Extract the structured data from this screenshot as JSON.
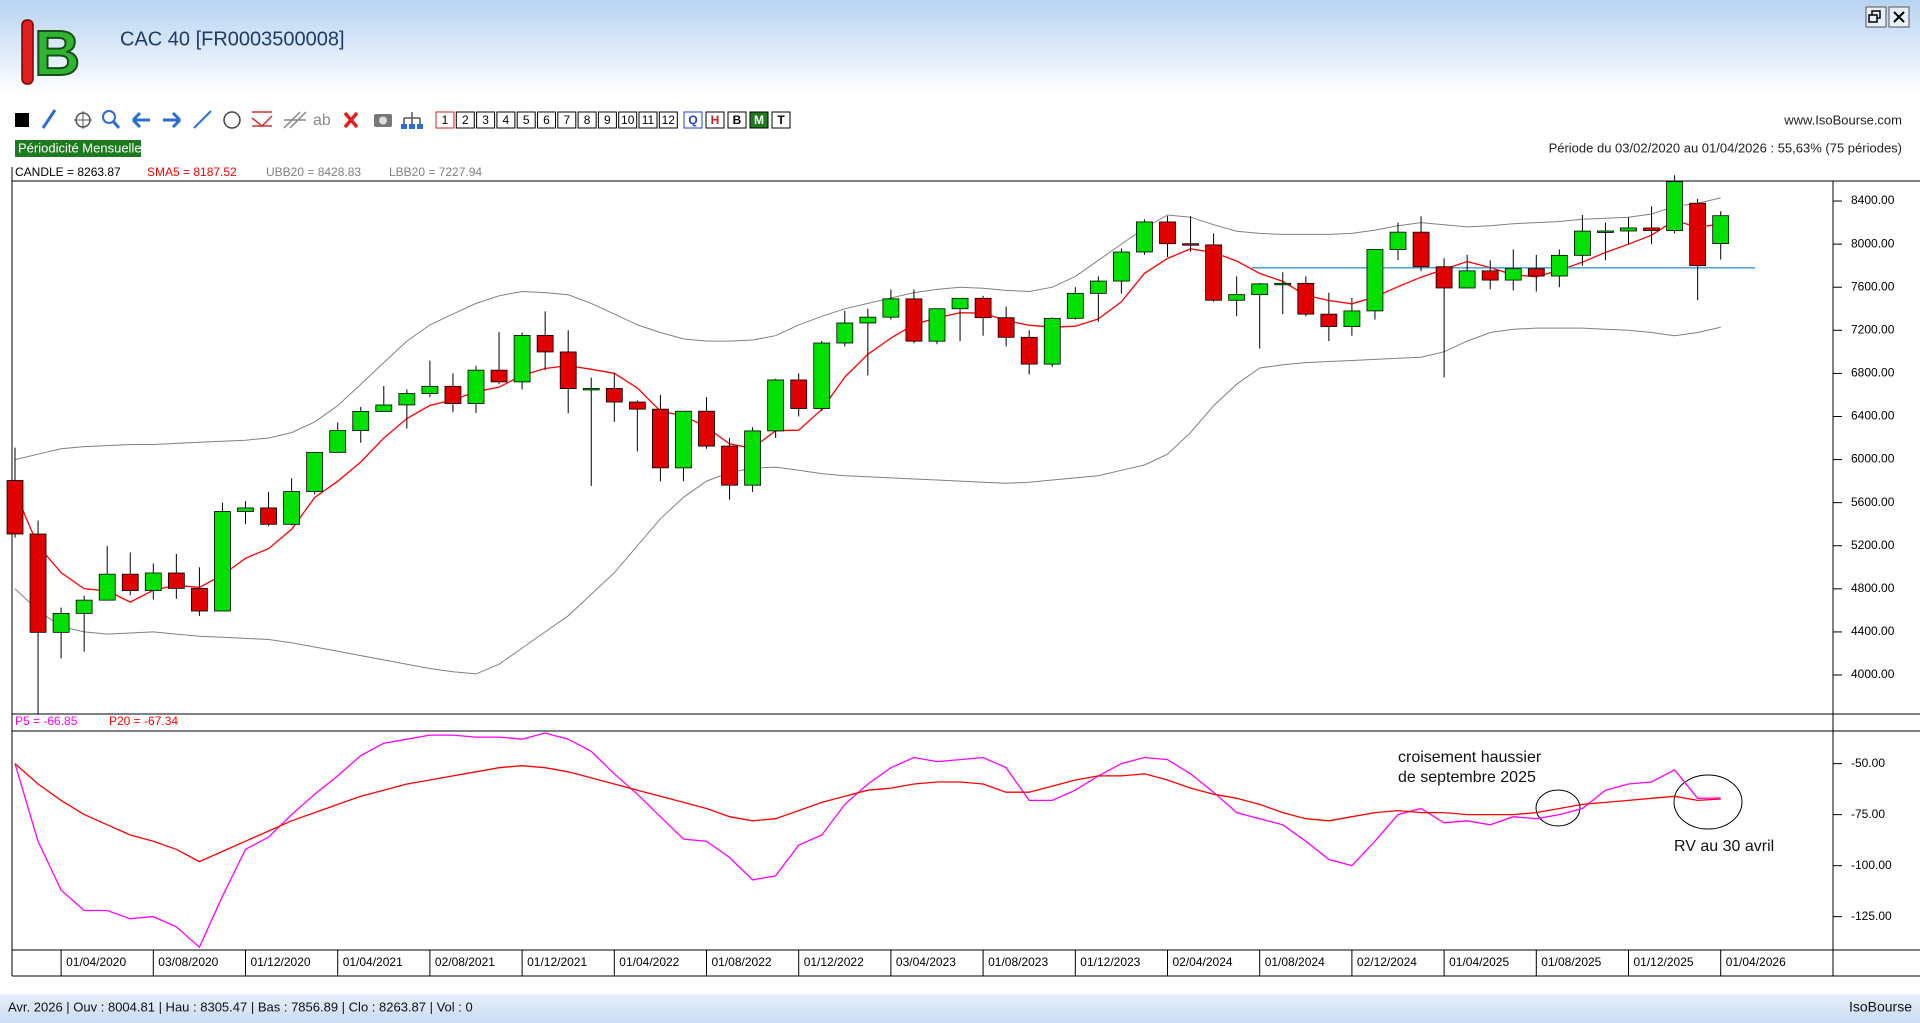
{
  "window": {
    "logo": "B",
    "title": "CAC 40 [FR0003500008]",
    "site": "www.IsoBourse.com",
    "periodicity": "Périodicité Mensuelle",
    "period": "Période du 03/02/2020 au 01/04/2026 : 55,63% (75 périodes)"
  },
  "toolbar": {
    "text_tool": "ab",
    "periods": [
      "1",
      "2",
      "3",
      "4",
      "5",
      "6",
      "7",
      "8",
      "9",
      "10",
      "11",
      "12"
    ],
    "frequencies": [
      "Q",
      "H",
      "B",
      "M",
      "T"
    ]
  },
  "status_bar": {
    "info": "Avr. 2026 | Ouv : 8004.81 | Hau : 8305.47 | Bas : 7856.89 | Clo : 8263.87 | Vol : 0",
    "brand": "IsoBourse"
  },
  "chart_data": [
    {
      "type": "candlestick",
      "categories": [
        null,
        null,
        "01/04/2020",
        null,
        null,
        null,
        "03/08/2020",
        null,
        null,
        null,
        "01/12/2020",
        null,
        null,
        null,
        "01/04/2021",
        null,
        null,
        null,
        "02/08/2021",
        null,
        null,
        null,
        "01/12/2021",
        null,
        null,
        null,
        "01/04/2022",
        null,
        null,
        null,
        "01/08/2022",
        null,
        null,
        null,
        "01/12/2022",
        null,
        null,
        null,
        "03/04/2023",
        null,
        null,
        null,
        "01/08/2023",
        null,
        null,
        null,
        "01/12/2023",
        null,
        null,
        null,
        "02/04/2024",
        null,
        null,
        null,
        "01/08/2024",
        null,
        null,
        null,
        "02/12/2024",
        null,
        null,
        null,
        "01/04/2025",
        null,
        null,
        null,
        "01/08/2025",
        null,
        null,
        null,
        "01/12/2025",
        null,
        null,
        null,
        "01/04/2026"
      ],
      "series": [
        {
          "name": "CANDLE = 8263.87",
          "up_color": "#00e000",
          "down_color": "#e00000",
          "open": [
            5806,
            5309,
            4396,
            4572,
            4695,
            4936,
            4784,
            4947,
            4804,
            4594,
            5518,
            5551,
            5399,
            5703,
            6067,
            6269,
            6447,
            6507,
            6613,
            6680,
            6520,
            6830,
            6721,
            7153,
            6999,
            6659,
            6660,
            6534,
            6468,
            5923,
            6449,
            6125,
            5762,
            6266,
            6739,
            6474,
            7082,
            7268,
            7322,
            7492,
            7099,
            7400,
            7497,
            7317,
            7135,
            6886,
            7311,
            7543,
            7657,
            7927,
            8206,
            8004,
            7993,
            7479,
            7531,
            7631,
            7636,
            7350,
            7235,
            7380,
            7950,
            8111,
            7790,
            7593,
            7752,
            7666,
            7772,
            7704,
            7896,
            8121,
            8122,
            8150,
            8126,
            8380,
            8004.81
          ],
          "high": [
            6111,
            5434,
            4626,
            4737,
            5198,
            5138,
            5035,
            5124,
            5000,
            5600,
            5614,
            5700,
            5826,
            6067,
            6344,
            6489,
            6683,
            6652,
            6919,
            6800,
            6870,
            7183,
            7181,
            7376,
            7200,
            6760,
            6800,
            6550,
            6600,
            6450,
            6580,
            6200,
            6300,
            6750,
            6800,
            7100,
            7380,
            7400,
            7580,
            7580,
            7400,
            7500,
            7520,
            7420,
            7200,
            7320,
            7600,
            7700,
            7960,
            8230,
            8260,
            8260,
            8100,
            7700,
            7640,
            7740,
            7700,
            7550,
            7500,
            7950,
            8200,
            8258,
            7870,
            7900,
            7850,
            7950,
            7900,
            7950,
            8271,
            8200,
            8250,
            8350,
            8640,
            8420,
            8305.47
          ],
          "low": [
            5275,
            3632,
            4154,
            4217,
            4693,
            4739,
            4700,
            4707,
            4548,
            4594,
            5401,
            5381,
            5390,
            5677,
            6064,
            6156,
            6445,
            6288,
            6580,
            6440,
            6433,
            6700,
            6650,
            6830,
            6430,
            5756,
            6350,
            6075,
            5797,
            5800,
            6100,
            5628,
            5700,
            6200,
            6400,
            6450,
            7050,
            6780,
            7300,
            7080,
            7070,
            7100,
            7150,
            7050,
            6790,
            6860,
            7300,
            7280,
            7540,
            7900,
            7880,
            7930,
            7465,
            7330,
            7030,
            7350,
            7330,
            7100,
            7150,
            7300,
            7850,
            7750,
            6763,
            7590,
            7580,
            7570,
            7560,
            7600,
            7800,
            7850,
            8000,
            8000,
            8100,
            7480,
            7856.89
          ],
          "close": [
            5309,
            4396,
            4572,
            4695,
            4936,
            4784,
            4947,
            4804,
            4594,
            5518,
            5551,
            5399,
            5703,
            6067,
            6269,
            6447,
            6507,
            6613,
            6680,
            6520,
            6830,
            6721,
            7153,
            6999,
            6659,
            6660,
            6534,
            6468,
            5923,
            6449,
            6125,
            5762,
            6266,
            6739,
            6474,
            7082,
            7268,
            7322,
            7492,
            7099,
            7400,
            7497,
            7317,
            7135,
            6886,
            7311,
            7543,
            7657,
            7927,
            8206,
            8004,
            7993,
            7479,
            7531,
            7631,
            7636,
            7350,
            7235,
            7380,
            7950,
            8111,
            7790,
            7593,
            7752,
            7666,
            7772,
            7704,
            7896,
            8121,
            8122,
            8150,
            8126,
            8580,
            7800,
            8263.87
          ]
        }
      ],
      "overlays": [
        {
          "name": "SMA5 = 8187.52",
          "color": "#ff0000",
          "values": [
            5700,
            5200,
            4950,
            4800,
            4782,
            4677,
            4787,
            4833,
            4813,
            4929,
            5083,
            5173,
            5353,
            5648,
            5798,
            5977,
            6199,
            6381,
            6503,
            6553,
            6630,
            6673,
            6781,
            6845,
            6872,
            6838,
            6801,
            6664,
            6449,
            6407,
            6300,
            6145,
            6105,
            6268,
            6273,
            6465,
            6766,
            6977,
            7128,
            7253,
            7316,
            7362,
            7361,
            7290,
            7247,
            7229,
            7238,
            7306,
            7465,
            7729,
            7867,
            7957,
            7922,
            7843,
            7728,
            7654,
            7525,
            7477,
            7446,
            7510,
            7605,
            7693,
            7765,
            7839,
            7782,
            7715,
            7697,
            7758,
            7832,
            7923,
            7999,
            8083,
            8220,
            8156,
            8187.52
          ]
        },
        {
          "name": "UBB20 = 8428.83",
          "color": "#808080",
          "values": [
            6000,
            6050,
            6100,
            6120,
            6130,
            6140,
            6140,
            6150,
            6160,
            6170,
            6180,
            6200,
            6250,
            6350,
            6500,
            6700,
            6900,
            7100,
            7250,
            7350,
            7450,
            7520,
            7560,
            7550,
            7530,
            7450,
            7350,
            7250,
            7180,
            7120,
            7100,
            7100,
            7110,
            7150,
            7250,
            7330,
            7400,
            7450,
            7500,
            7550,
            7580,
            7600,
            7590,
            7570,
            7560,
            7600,
            7700,
            7850,
            8000,
            8150,
            8270,
            8250,
            8180,
            8120,
            8100,
            8090,
            8090,
            8090,
            8100,
            8130,
            8170,
            8200,
            8180,
            8160,
            8170,
            8190,
            8200,
            8210,
            8230,
            8240,
            8250,
            8280,
            8350,
            8380,
            8428.83
          ]
        },
        {
          "name": "LBB20 = 7227.94",
          "color": "#808080",
          "values": [
            4800,
            4600,
            4450,
            4400,
            4380,
            4390,
            4400,
            4380,
            4360,
            4350,
            4340,
            4330,
            4300,
            4260,
            4220,
            4180,
            4140,
            4100,
            4060,
            4030,
            4010,
            4100,
            4250,
            4400,
            4550,
            4750,
            4950,
            5200,
            5450,
            5650,
            5800,
            5880,
            5920,
            5930,
            5900,
            5870,
            5850,
            5840,
            5830,
            5820,
            5810,
            5800,
            5790,
            5780,
            5790,
            5810,
            5830,
            5850,
            5900,
            5950,
            6050,
            6250,
            6500,
            6700,
            6850,
            6880,
            6900,
            6910,
            6920,
            6930,
            6940,
            6950,
            7000,
            7100,
            7180,
            7210,
            7220,
            7220,
            7220,
            7210,
            7200,
            7180,
            7150,
            7180,
            7227.94
          ]
        }
      ],
      "reference_line": {
        "value": 7780,
        "color": "#3a9ad9"
      },
      "ylim": [
        3638,
        8586
      ],
      "yticks": [
        {
          "value": 4000,
          "label": "4000.00"
        },
        {
          "value": 4400,
          "label": "4400.00"
        },
        {
          "value": 4800,
          "label": "4800.00"
        },
        {
          "value": 5200,
          "label": "5200.00"
        },
        {
          "value": 5600,
          "label": "5600.00"
        },
        {
          "value": 6000,
          "label": "6000.00"
        },
        {
          "value": 6400,
          "label": "6400.00"
        },
        {
          "value": 6800,
          "label": "6800.00"
        },
        {
          "value": 7200,
          "label": "7200.00"
        },
        {
          "value": 7600,
          "label": "7600.00"
        },
        {
          "value": 8000,
          "label": "8000.00"
        },
        {
          "value": 8400,
          "label": "8400.00"
        }
      ]
    },
    {
      "type": "line",
      "series": [
        {
          "name": "P5 = -66.85",
          "color": "#ff00ff",
          "values": [
            -50,
            -88,
            -112,
            -122,
            -122,
            -126,
            -125,
            -130,
            -140,
            -115,
            -92,
            -86,
            -75,
            -65,
            -56,
            -46,
            -40,
            -38,
            -36,
            -36,
            -37,
            -37,
            -38,
            -35,
            -38,
            -44,
            -55,
            -65,
            -76,
            -87,
            -88,
            -96,
            -107,
            -105,
            -90,
            -85,
            -70,
            -60,
            -52,
            -47,
            -49,
            -48,
            -47,
            -52,
            -68,
            -68,
            -63,
            -56,
            -50,
            -47,
            -48,
            -55,
            -64,
            -74,
            -77,
            -80,
            -88,
            -97,
            -100,
            -88,
            -75,
            -72,
            -79,
            -78,
            -80,
            -76,
            -77,
            -75,
            -72,
            -63,
            -60,
            -59,
            -53,
            -67,
            -66.85
          ]
        },
        {
          "name": "P20 = -67.34",
          "color": "#ff0000",
          "values": [
            -50,
            -60,
            -68,
            -75,
            -80,
            -85,
            -88,
            -92,
            -98,
            -93,
            -88,
            -83,
            -78,
            -74,
            -70,
            -66,
            -63,
            -60,
            -58,
            -56,
            -54,
            -52,
            -51,
            -52,
            -54,
            -57,
            -60,
            -63,
            -66,
            -69,
            -72,
            -76,
            -78,
            -77,
            -73,
            -69,
            -66,
            -63,
            -62,
            -60,
            -59,
            -59,
            -60,
            -64,
            -64,
            -61,
            -58,
            -56,
            -56,
            -55,
            -58,
            -62,
            -65,
            -67,
            -70,
            -74,
            -77,
            -78,
            -76,
            -74,
            -73,
            -74,
            -74,
            -75,
            -75,
            -75,
            -74,
            -72,
            -70,
            -69,
            -68,
            -67,
            -66,
            -68,
            -67.34
          ]
        }
      ],
      "annotations": [
        "croisement haussier",
        "de septembre 2025",
        "RV au 30 avril"
      ],
      "ylim": [
        -141.35,
        -34
      ],
      "yticks": [
        {
          "value": -50,
          "label": "-50.00"
        },
        {
          "value": -75,
          "label": "-75.00"
        },
        {
          "value": -100,
          "label": "-100.00"
        },
        {
          "value": -125,
          "label": "-125.00"
        }
      ]
    }
  ]
}
